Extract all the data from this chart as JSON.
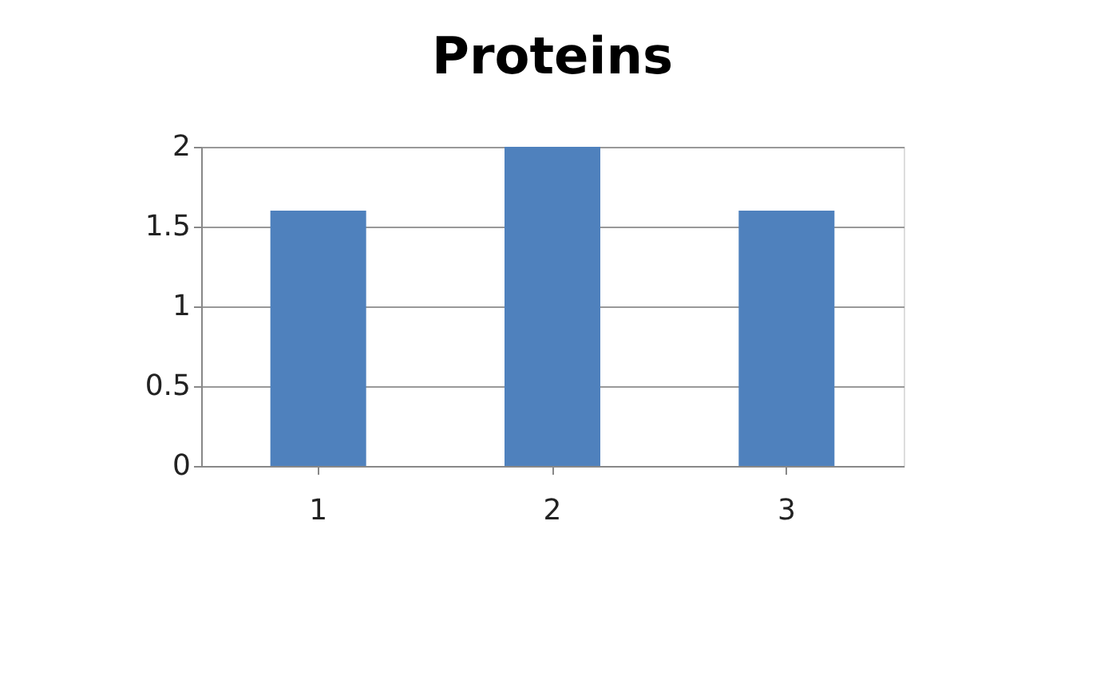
{
  "chart_data": {
    "type": "bar",
    "title": "Proteins",
    "categories": [
      "1",
      "2",
      "3"
    ],
    "values": [
      1.6,
      2,
      1.6
    ],
    "color": "#4f81bd",
    "ylim": [
      0,
      2
    ],
    "yticks": [
      0,
      0.5,
      1,
      1.5,
      2
    ],
    "grid": "y"
  }
}
